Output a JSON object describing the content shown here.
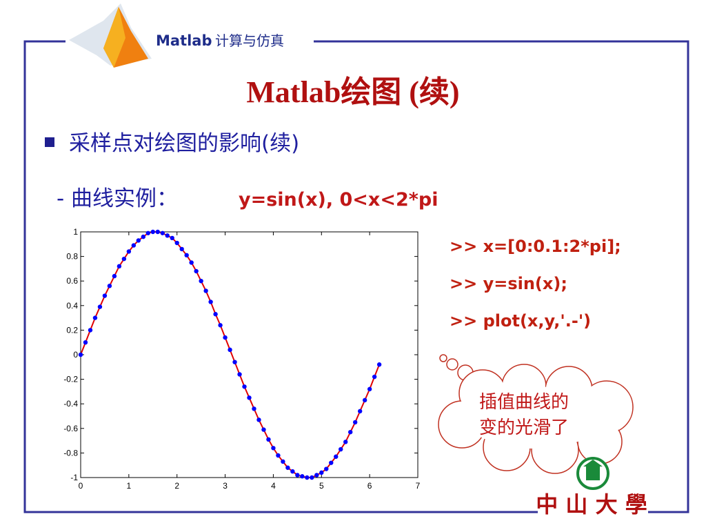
{
  "header": {
    "brand": "Matlab",
    "subject": "计算与仿真"
  },
  "title": "Matlab绘图 (续)",
  "bullet": "采样点对绘图的影响(续)",
  "example": {
    "prefix": "- 曲线实例：",
    "formula": "y=sin(x), 0<x<2*pi"
  },
  "code": [
    ">> x=[0:0.1:2*pi];",
    ">> y=sin(x);",
    ">> plot(x,y,'.-')"
  ],
  "callout": [
    "插值曲线的",
    "变的光滑了"
  ],
  "logo": "中 山 大 學",
  "chart_data": {
    "type": "line",
    "x": [
      0,
      0.1,
      0.2,
      0.3,
      0.4,
      0.5,
      0.6,
      0.7,
      0.8,
      0.9,
      1.0,
      1.1,
      1.2,
      1.3,
      1.4,
      1.5,
      1.6,
      1.7,
      1.8,
      1.9,
      2.0,
      2.1,
      2.2,
      2.3,
      2.4,
      2.5,
      2.6,
      2.7,
      2.8,
      2.9,
      3.0,
      3.1,
      3.2,
      3.3,
      3.4,
      3.5,
      3.6,
      3.7,
      3.8,
      3.9,
      4.0,
      4.1,
      4.2,
      4.3,
      4.4,
      4.5,
      4.6,
      4.7,
      4.8,
      4.9,
      5.0,
      5.1,
      5.2,
      5.3,
      5.4,
      5.5,
      5.6,
      5.7,
      5.8,
      5.9,
      6.0,
      6.1,
      6.2
    ],
    "series": [
      {
        "color": "#e00000",
        "marker_color": "#0000ff",
        "values": [
          0,
          0.1,
          0.2,
          0.3,
          0.39,
          0.48,
          0.56,
          0.64,
          0.72,
          0.78,
          0.84,
          0.89,
          0.93,
          0.96,
          0.99,
          1.0,
          1.0,
          0.99,
          0.97,
          0.95,
          0.91,
          0.86,
          0.81,
          0.75,
          0.68,
          0.6,
          0.52,
          0.43,
          0.33,
          0.24,
          0.14,
          0.04,
          -0.06,
          -0.16,
          -0.26,
          -0.35,
          -0.44,
          -0.53,
          -0.61,
          -0.69,
          -0.76,
          -0.82,
          -0.87,
          -0.92,
          -0.95,
          -0.98,
          -0.99,
          -1.0,
          -1.0,
          -0.98,
          -0.96,
          -0.93,
          -0.88,
          -0.83,
          -0.77,
          -0.71,
          -0.63,
          -0.55,
          -0.46,
          -0.37,
          -0.28,
          -0.18,
          -0.08
        ]
      }
    ],
    "xlim": [
      0,
      7
    ],
    "ylim": [
      -1,
      1
    ],
    "xticks": [
      0,
      1,
      2,
      3,
      4,
      5,
      6,
      7
    ],
    "yticks": [
      -1,
      -0.8,
      -0.6,
      -0.4,
      -0.2,
      0,
      0.2,
      0.4,
      0.6,
      0.8,
      1
    ]
  }
}
